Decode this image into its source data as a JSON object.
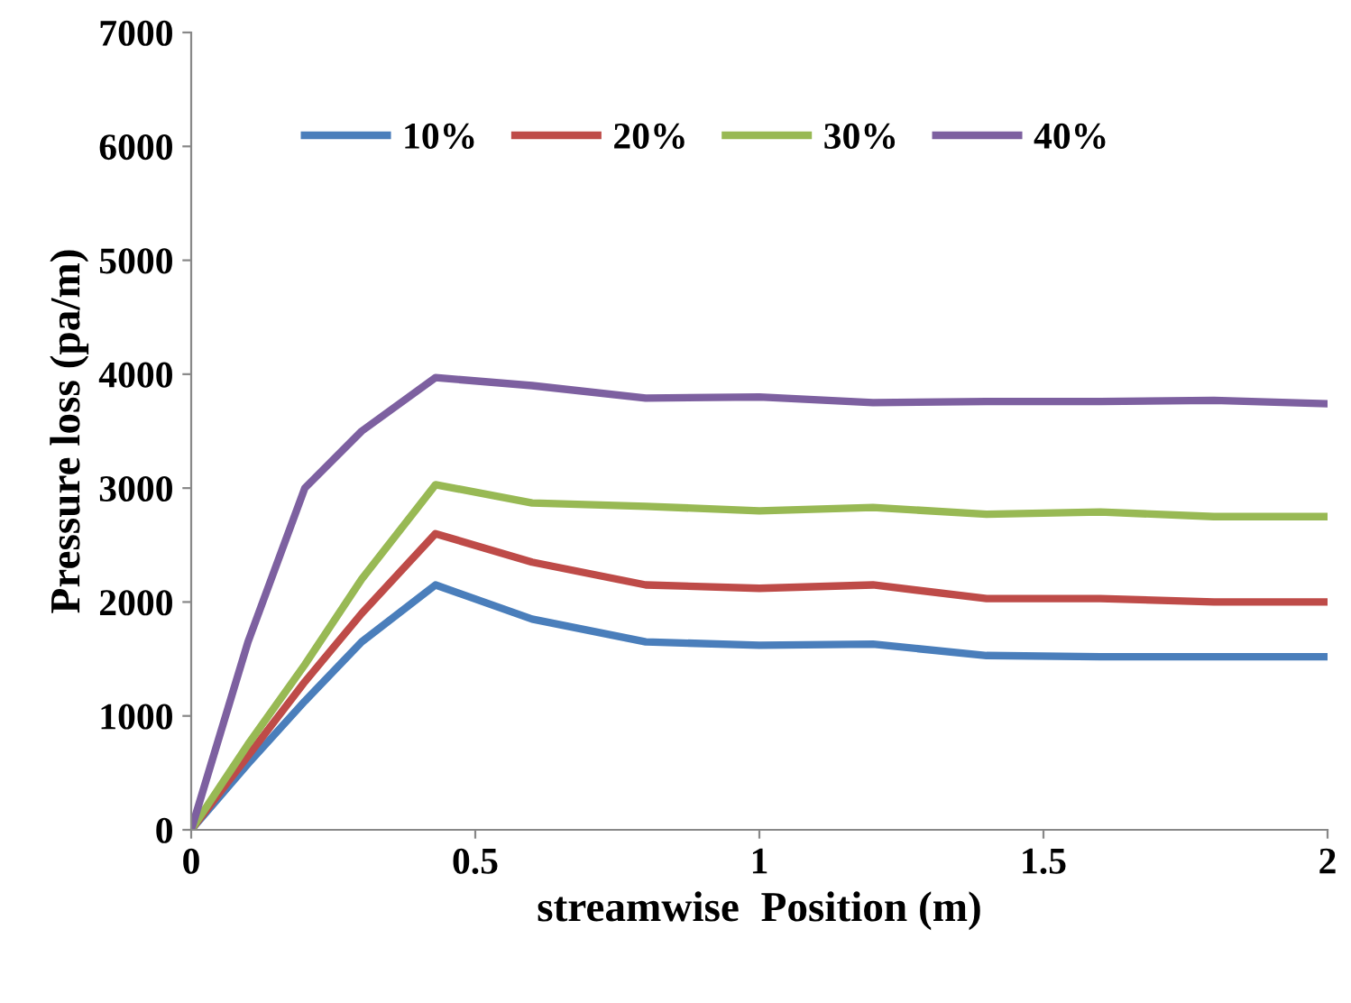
{
  "chart_data": {
    "type": "line",
    "xlabel": "streamwise  Position (m)",
    "ylabel": "Pressure loss (pa/m)",
    "x": [
      0,
      0.1,
      0.2,
      0.3,
      0.43,
      0.6,
      0.8,
      1.0,
      1.2,
      1.4,
      1.6,
      1.8,
      2.0
    ],
    "series": [
      {
        "name": "10%",
        "color": "#4a7ebb",
        "values": [
          0,
          580,
          1130,
          1650,
          2150,
          1850,
          1650,
          1620,
          1630,
          1530,
          1520,
          1520,
          1520
        ]
      },
      {
        "name": "20%",
        "color": "#be4b48",
        "values": [
          0,
          650,
          1300,
          1900,
          2600,
          2350,
          2150,
          2120,
          2150,
          2030,
          2030,
          2000,
          2000
        ]
      },
      {
        "name": "30%",
        "color": "#98b954",
        "values": [
          0,
          750,
          1450,
          2200,
          3030,
          2870,
          2840,
          2800,
          2830,
          2770,
          2790,
          2750,
          2750
        ]
      },
      {
        "name": "40%",
        "color": "#7d60a0",
        "values": [
          0,
          1650,
          3000,
          3500,
          3970,
          3900,
          3790,
          3800,
          3750,
          3760,
          3760,
          3770,
          3740
        ]
      }
    ],
    "xlim": [
      0,
      2
    ],
    "ylim": [
      0,
      7000
    ],
    "xticks": [
      0,
      0.5,
      1,
      1.5,
      2
    ],
    "yticks": [
      0,
      1000,
      2000,
      3000,
      4000,
      5000,
      6000,
      7000
    ],
    "grid": false,
    "legend": "top left",
    "marker": "none",
    "line_style": "solid"
  }
}
